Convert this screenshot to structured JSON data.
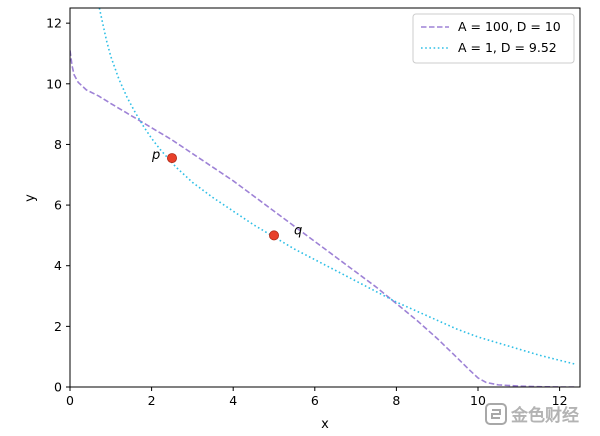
{
  "chart_data": {
    "type": "line",
    "xlabel": "x",
    "ylabel": "y",
    "xlim": [
      0,
      12.5
    ],
    "ylim": [
      0,
      12.5
    ],
    "xticks": [
      0,
      2,
      4,
      6,
      8,
      10,
      12
    ],
    "yticks": [
      0,
      2,
      4,
      6,
      8,
      10,
      12
    ],
    "grid": false,
    "legend_position": "top-right",
    "series": [
      {
        "name": "A = 100, D = 10",
        "color": "#9e82d6",
        "linestyle": "dashed",
        "x": [
          0.0,
          0.05,
          0.1,
          0.2,
          0.4,
          0.7,
          1.0,
          1.5,
          2.0,
          2.5,
          3.0,
          3.5,
          4.0,
          4.5,
          5.0,
          5.5,
          6.0,
          6.5,
          7.0,
          7.5,
          8.0,
          8.5,
          9.0,
          9.5,
          9.8,
          10.0,
          10.2,
          10.5,
          11.0,
          11.5,
          12.0,
          12.4
        ],
        "y": [
          11.1,
          10.6,
          10.3,
          10.05,
          9.8,
          9.6,
          9.35,
          8.95,
          8.55,
          8.15,
          7.7,
          7.25,
          6.8,
          6.3,
          5.8,
          5.3,
          4.8,
          4.3,
          3.8,
          3.3,
          2.75,
          2.2,
          1.6,
          0.95,
          0.55,
          0.3,
          0.15,
          0.07,
          0.03,
          0.01,
          0.0,
          0.0
        ]
      },
      {
        "name": "A = 1, D = 9.52",
        "color": "#2ebfe6",
        "linestyle": "dotted",
        "x": [
          0.72,
          0.8,
          0.9,
          1.0,
          1.2,
          1.4,
          1.6,
          1.8,
          2.0,
          2.2,
          2.4,
          2.6,
          2.8,
          3.0,
          3.5,
          4.0,
          4.5,
          5.0,
          5.5,
          6.0,
          6.5,
          7.0,
          7.5,
          8.0,
          8.5,
          9.0,
          9.5,
          10.0,
          10.5,
          11.0,
          11.5,
          12.0,
          12.4
        ],
        "y": [
          12.5,
          12.0,
          11.4,
          10.9,
          10.15,
          9.55,
          9.05,
          8.6,
          8.2,
          7.85,
          7.55,
          7.25,
          7.0,
          6.75,
          6.25,
          5.8,
          5.35,
          4.95,
          4.55,
          4.2,
          3.85,
          3.5,
          3.15,
          2.8,
          2.5,
          2.2,
          1.9,
          1.65,
          1.45,
          1.25,
          1.05,
          0.88,
          0.75
        ]
      }
    ],
    "points": [
      {
        "label": "p",
        "x": 2.5,
        "y": 7.55,
        "color": "#e8402a"
      },
      {
        "label": "q",
        "x": 5.0,
        "y": 5.0,
        "color": "#e8402a"
      }
    ]
  },
  "legend": {
    "entries": [
      {
        "text": "A = 100, D = 10"
      },
      {
        "text": "A = 1, D = 9.52"
      }
    ]
  },
  "watermark": {
    "text": "金色财经"
  }
}
